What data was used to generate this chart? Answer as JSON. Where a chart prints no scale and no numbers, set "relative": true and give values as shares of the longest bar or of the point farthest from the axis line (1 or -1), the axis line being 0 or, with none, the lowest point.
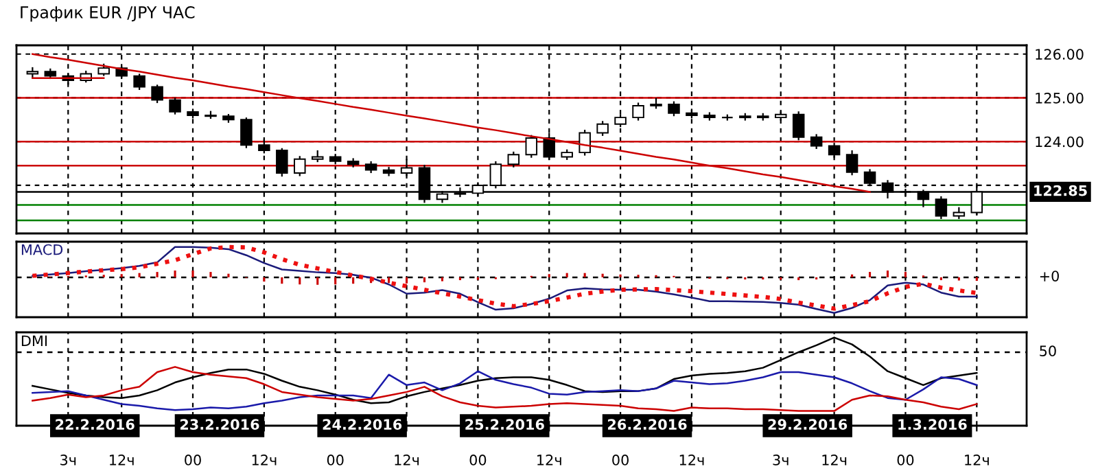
{
  "chart_data": [
    {
      "type": "candlestick",
      "title": "График EUR /JPY ЧАС",
      "grid": true,
      "tick_labels": "y",
      "ylim": [
        121.9,
        126.2
      ],
      "yticks": [
        {
          "value": 126,
          "label": "126.00"
        },
        {
          "value": 125,
          "label": "125.00"
        },
        {
          "value": 124,
          "label": "124.00"
        },
        {
          "value": 123,
          "label": null
        }
      ],
      "categories": [
        null,
        null,
        null,
        null,
        null,
        null,
        null,
        null,
        null,
        null,
        null,
        null,
        null,
        null,
        null,
        null,
        null,
        null,
        null,
        null,
        null,
        null,
        null,
        null,
        null,
        null,
        null,
        null,
        null,
        null,
        null,
        null,
        null,
        null,
        null,
        null,
        null,
        null,
        null,
        null,
        null,
        null,
        null,
        null,
        null,
        null,
        null,
        null,
        null,
        null,
        null,
        null,
        null,
        null
      ],
      "ohlc": [
        [
          125.55,
          125.7,
          125.45,
          125.6
        ],
        [
          125.6,
          125.67,
          125.43,
          125.5
        ],
        [
          125.5,
          125.57,
          125.3,
          125.4
        ],
        [
          125.4,
          125.62,
          125.35,
          125.55
        ],
        [
          125.55,
          125.78,
          125.5,
          125.68
        ],
        [
          125.68,
          125.72,
          125.43,
          125.5
        ],
        [
          125.5,
          125.55,
          125.18,
          125.25
        ],
        [
          125.25,
          125.3,
          124.88,
          124.95
        ],
        [
          124.95,
          125.0,
          124.62,
          124.68
        ],
        [
          124.68,
          124.75,
          124.53,
          124.6
        ],
        [
          124.6,
          124.7,
          124.52,
          124.58
        ],
        [
          124.58,
          124.63,
          124.43,
          124.5
        ],
        [
          124.5,
          124.55,
          123.85,
          123.92
        ],
        [
          123.92,
          124.05,
          123.73,
          123.8
        ],
        [
          123.8,
          123.85,
          123.2,
          123.28
        ],
        [
          123.28,
          123.67,
          123.21,
          123.6
        ],
        [
          123.6,
          123.8,
          123.53,
          123.65
        ],
        [
          123.65,
          123.72,
          123.48,
          123.55
        ],
        [
          123.55,
          123.62,
          123.41,
          123.48
        ],
        [
          123.48,
          123.55,
          123.28,
          123.35
        ],
        [
          123.35,
          123.42,
          123.21,
          123.28
        ],
        [
          123.28,
          123.6,
          123.21,
          123.4
        ],
        [
          123.4,
          123.47,
          122.6,
          122.68
        ],
        [
          122.68,
          122.87,
          122.6,
          122.8
        ],
        [
          122.8,
          122.95,
          122.73,
          122.82
        ],
        [
          122.82,
          123.07,
          122.75,
          123.0
        ],
        [
          123.0,
          123.55,
          122.93,
          123.48
        ],
        [
          123.48,
          123.77,
          123.41,
          123.7
        ],
        [
          123.7,
          124.15,
          123.63,
          124.08
        ],
        [
          124.08,
          124.2,
          123.58,
          123.65
        ],
        [
          123.65,
          123.82,
          123.58,
          123.75
        ],
        [
          123.75,
          124.27,
          123.68,
          124.2
        ],
        [
          124.2,
          124.47,
          124.13,
          124.4
        ],
        [
          124.4,
          124.62,
          124.33,
          124.55
        ],
        [
          124.55,
          124.89,
          124.48,
          124.82
        ],
        [
          124.82,
          125.0,
          124.75,
          124.85
        ],
        [
          124.85,
          124.92,
          124.58,
          124.65
        ],
        [
          124.65,
          124.75,
          124.53,
          124.6
        ],
        [
          124.6,
          124.67,
          124.48,
          124.55
        ],
        [
          124.55,
          124.62,
          124.48,
          124.55
        ],
        [
          124.55,
          124.65,
          124.48,
          124.58
        ],
        [
          124.58,
          124.65,
          124.48,
          124.55
        ],
        [
          124.55,
          124.69,
          124.48,
          124.62
        ],
        [
          124.62,
          124.69,
          124.03,
          124.1
        ],
        [
          124.1,
          124.17,
          123.83,
          123.9
        ],
        [
          123.9,
          123.97,
          123.63,
          123.7
        ],
        [
          123.7,
          123.8,
          123.23,
          123.3
        ],
        [
          123.3,
          123.37,
          122.98,
          123.05
        ],
        [
          123.05,
          123.12,
          122.7,
          122.85
        ],
        [
          122.85,
          122.92,
          122.75,
          122.85
        ],
        [
          122.85,
          122.9,
          122.5,
          122.68
        ],
        [
          122.68,
          122.75,
          122.23,
          122.3
        ],
        [
          122.3,
          122.5,
          122.23,
          122.38
        ],
        [
          122.38,
          123.0,
          122.31,
          122.85
        ]
      ],
      "series": [
        {
          "type": "line",
          "color": "#cc0000",
          "values": [
            126.0,
            125.93,
            125.87,
            125.8,
            125.73,
            125.66,
            125.6,
            125.53,
            125.46,
            125.4,
            125.33,
            125.26,
            125.2,
            125.13,
            125.06,
            124.99,
            124.93,
            124.86,
            124.79,
            124.73,
            124.66,
            124.59,
            124.53,
            124.46,
            124.39,
            124.32,
            124.26,
            124.19,
            124.12,
            124.06,
            123.99,
            123.92,
            123.86,
            123.79,
            123.72,
            123.65,
            123.59,
            123.52,
            123.45,
            123.39,
            123.32,
            123.25,
            123.19,
            123.12,
            123.05,
            122.98,
            122.92,
            122.85,
            null,
            null,
            null,
            null,
            null,
            null
          ]
        },
        {
          "type": "line",
          "color": "#cc0000",
          "values": [
            125.45,
            125.45,
            125.45,
            125.45,
            125.45,
            null,
            null,
            null,
            null,
            null,
            null,
            null,
            null,
            null,
            null,
            null,
            null,
            null,
            null,
            null,
            null,
            null,
            null,
            null,
            null,
            null,
            null,
            null,
            null,
            null,
            null,
            null,
            null,
            null,
            null,
            null,
            null,
            null,
            null,
            null,
            null,
            null,
            null,
            null,
            null,
            null,
            null,
            null,
            null,
            null,
            null,
            null,
            null,
            null
          ]
        }
      ],
      "ref_lines": [
        {
          "axis": "y",
          "value": 125,
          "color": "#cc0000",
          "line_style": "solid"
        },
        {
          "axis": "y",
          "value": 124,
          "color": "#cc0000",
          "line_style": "solid"
        },
        {
          "axis": "y",
          "value": 123.45,
          "color": "#cc0000",
          "line_style": "solid"
        },
        {
          "axis": "y",
          "value": 122.55,
          "color": "#008000",
          "line_style": "solid"
        },
        {
          "axis": "y",
          "value": 122.2,
          "color": "#008000",
          "line_style": "solid"
        },
        {
          "axis": "y",
          "value": 122.85,
          "color": "#000000",
          "line_style": "solid",
          "label": "122.85"
        }
      ]
    },
    {
      "type": "line",
      "title": "MACD",
      "relative": true,
      "grid": "x",
      "tick_labels": false,
      "categories": [
        null,
        null,
        null,
        null,
        null,
        null,
        null,
        null,
        null,
        null,
        null,
        null,
        null,
        null,
        null,
        null,
        null,
        null,
        null,
        null,
        null,
        null,
        null,
        null,
        null,
        null,
        null,
        null,
        null,
        null,
        null,
        null,
        null,
        null,
        null,
        null,
        null,
        null,
        null,
        null,
        null,
        null,
        null,
        null,
        null,
        null,
        null,
        null,
        null,
        null,
        null,
        null,
        null,
        null
      ],
      "series": [
        {
          "type": "bar",
          "color": "#cc0000",
          "values": [
            0.0,
            0.02,
            0.03,
            0.05,
            0.07,
            0.09,
            0.12,
            0.15,
            0.19,
            0.19,
            0.15,
            0.1,
            -0.02,
            -0.12,
            -0.18,
            -0.2,
            -0.21,
            -0.2,
            -0.18,
            -0.16,
            -0.16,
            -0.17,
            -0.14,
            -0.11,
            -0.08,
            -0.07,
            -0.05,
            0.0,
            0.04,
            0.09,
            0.12,
            0.12,
            0.1,
            0.08,
            0.07,
            0.06,
            0.04,
            0.0,
            -0.04,
            -0.05,
            -0.06,
            -0.06,
            -0.07,
            -0.08,
            -0.06,
            0.0,
            0.08,
            0.15,
            0.19,
            0.15,
            0.05,
            -0.08,
            -0.09,
            -0.1
          ]
        },
        {
          "type": "line",
          "color": "#1a1a7a",
          "line_style": "solid",
          "values": [
            0.04,
            0.08,
            0.12,
            0.17,
            0.21,
            0.26,
            0.32,
            0.42,
            0.85,
            0.85,
            0.83,
            0.79,
            0.62,
            0.4,
            0.22,
            0.18,
            0.14,
            0.12,
            0.07,
            -0.01,
            -0.2,
            -0.46,
            -0.43,
            -0.36,
            -0.46,
            -0.7,
            -0.91,
            -0.87,
            -0.75,
            -0.6,
            -0.37,
            -0.31,
            -0.34,
            -0.35,
            -0.35,
            -0.4,
            -0.48,
            -0.57,
            -0.67,
            -0.67,
            -0.68,
            -0.69,
            -0.72,
            -0.77,
            -0.89,
            -1.0,
            -0.86,
            -0.64,
            -0.23,
            -0.15,
            -0.2,
            -0.43,
            -0.54,
            -0.54
          ]
        },
        {
          "type": "line",
          "color": "#ee1111",
          "line_style": "dotted",
          "values": [
            0.04,
            0.08,
            0.12,
            0.16,
            0.2,
            0.23,
            0.28,
            0.38,
            0.48,
            0.65,
            0.81,
            0.85,
            0.84,
            0.7,
            0.51,
            0.35,
            0.25,
            0.15,
            0.05,
            -0.04,
            -0.15,
            -0.25,
            -0.35,
            -0.45,
            -0.54,
            -0.64,
            -0.74,
            -0.81,
            -0.75,
            -0.67,
            -0.57,
            -0.46,
            -0.4,
            -0.35,
            -0.34,
            -0.33,
            -0.36,
            -0.39,
            -0.43,
            -0.47,
            -0.51,
            -0.55,
            -0.61,
            -0.71,
            -0.79,
            -0.88,
            -0.78,
            -0.67,
            -0.45,
            -0.27,
            -0.18,
            -0.29,
            -0.37,
            -0.44
          ]
        }
      ],
      "ref_lines": [
        {
          "axis": "y",
          "value": 0,
          "color": "#000000",
          "line_style": "dashed",
          "label": "+0"
        }
      ]
    },
    {
      "type": "line",
      "title": "DMI",
      "relative": true,
      "grid": "x",
      "tick_labels": "x",
      "categories": [
        null,
        null,
        "3ч",
        null,
        null,
        "12ч",
        null,
        null,
        null,
        "00",
        null,
        null,
        null,
        "12ч",
        null,
        null,
        null,
        "00",
        null,
        null,
        null,
        "12ч",
        null,
        null,
        null,
        "00",
        null,
        null,
        null,
        "12ч",
        null,
        null,
        null,
        "00",
        null,
        null,
        null,
        "12ч",
        null,
        null,
        null,
        null,
        "3ч",
        null,
        null,
        "12ч",
        null,
        null,
        null,
        "00",
        null,
        null,
        null,
        "12ч"
      ],
      "series": [
        {
          "color": "#000000",
          "values": [
            0.44,
            0.4,
            0.36,
            0.33,
            0.31,
            0.3,
            0.33,
            0.39,
            0.48,
            0.54,
            0.59,
            0.63,
            0.63,
            0.58,
            0.5,
            0.43,
            0.39,
            0.34,
            0.28,
            0.24,
            0.25,
            0.32,
            0.37,
            0.41,
            0.45,
            0.5,
            0.53,
            0.54,
            0.54,
            0.51,
            0.45,
            0.38,
            0.37,
            0.38,
            0.38,
            0.41,
            0.52,
            0.56,
            0.58,
            0.59,
            0.61,
            0.65,
            0.74,
            0.83,
            0.91,
            1.0,
            0.92,
            0.78,
            0.61,
            0.53,
            0.45,
            0.53,
            0.56,
            0.59
          ]
        },
        {
          "color": "#1a1aaa",
          "values": [
            0.36,
            0.37,
            0.38,
            0.33,
            0.28,
            0.23,
            0.21,
            0.18,
            0.16,
            0.17,
            0.19,
            0.18,
            0.2,
            0.24,
            0.27,
            0.31,
            0.33,
            0.33,
            0.33,
            0.3,
            0.57,
            0.45,
            0.48,
            0.39,
            0.47,
            0.61,
            0.51,
            0.46,
            0.42,
            0.35,
            0.34,
            0.37,
            0.38,
            0.39,
            0.38,
            0.41,
            0.5,
            0.48,
            0.46,
            0.47,
            0.5,
            0.54,
            0.6,
            0.6,
            0.57,
            0.54,
            0.47,
            0.38,
            0.3,
            0.28,
            0.4,
            0.54,
            0.52,
            0.45
          ]
        },
        {
          "color": "#cc0000",
          "values": [
            0.27,
            0.3,
            0.34,
            0.31,
            0.33,
            0.39,
            0.43,
            0.6,
            0.66,
            0.6,
            0.57,
            0.55,
            0.53,
            0.46,
            0.37,
            0.34,
            0.31,
            0.29,
            0.27,
            0.29,
            0.33,
            0.37,
            0.43,
            0.32,
            0.25,
            0.21,
            0.19,
            0.2,
            0.21,
            0.23,
            0.24,
            0.23,
            0.22,
            0.21,
            0.18,
            0.17,
            0.15,
            0.19,
            0.18,
            0.18,
            0.17,
            0.17,
            0.16,
            0.15,
            0.15,
            0.15,
            0.28,
            0.33,
            0.32,
            0.28,
            0.25,
            0.2,
            0.17,
            0.23
          ]
        }
      ],
      "ref_lines": [
        {
          "axis": "y",
          "value": 0.83,
          "color": "#000000",
          "line_style": "dashed"
        }
      ],
      "annotations": [
        "50",
        "22.2.2016",
        "23.2.2016",
        "24.2.2016",
        "25.2.2016",
        "26.2.2016",
        "29.2.2016",
        "1.3.2016"
      ]
    }
  ]
}
